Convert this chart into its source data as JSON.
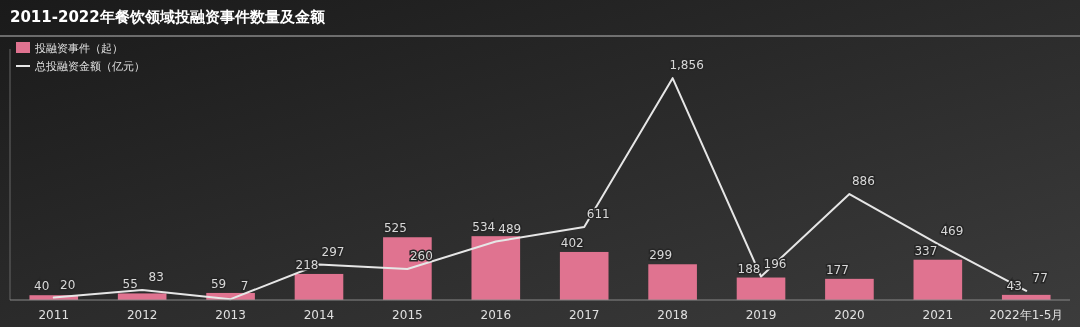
{
  "chart_data": {
    "type": "bar",
    "title": "2011-2022年餐饮领域投融资事件数量及金额",
    "categories": [
      "2011",
      "2012",
      "2013",
      "2014",
      "2015",
      "2016",
      "2017",
      "2018",
      "2019",
      "2020",
      "2021",
      "2022年1-5月"
    ],
    "series": [
      {
        "name": "投融资事件（起）",
        "color": "#e07390",
        "values": [
          40,
          55,
          59,
          218,
          525,
          534,
          402,
          299,
          188,
          177,
          337,
          43
        ]
      },
      {
        "name": "总投融资金额（亿元）",
        "type": "line",
        "color": "#e6e6e6",
        "values": [
          20,
          83,
          7,
          297,
          260,
          489,
          611,
          1856,
          196,
          886,
          469,
          77
        ],
        "value_labels": [
          "20",
          "83",
          "7",
          "297",
          "260",
          "489",
          "611",
          "1,856",
          "196",
          "886",
          "469",
          "77"
        ]
      }
    ],
    "ylim": [
      0,
      2100
    ],
    "tick_labels": "x",
    "data_labels": true,
    "legend": "top left"
  }
}
